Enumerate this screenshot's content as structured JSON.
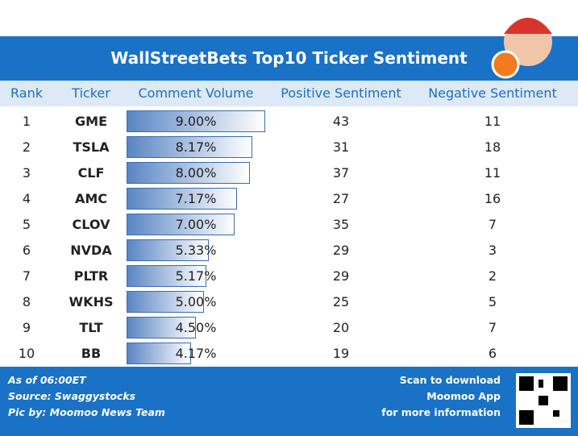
{
  "header": {
    "title": "WallStreetBets Top10 Ticker Sentiment"
  },
  "table": {
    "columns": [
      "Rank",
      "Ticker",
      "Comment Volume",
      "Positive Sentiment",
      "Negative Sentiment"
    ],
    "rows": [
      {
        "rank": 1,
        "ticker": "GME",
        "comment_volume": 9.0,
        "comment_volume_label": "9.00%",
        "positive": 43,
        "negative": 11
      },
      {
        "rank": 2,
        "ticker": "TSLA",
        "comment_volume": 8.17,
        "comment_volume_label": "8.17%",
        "positive": 31,
        "negative": 18
      },
      {
        "rank": 3,
        "ticker": "CLF",
        "comment_volume": 8.0,
        "comment_volume_label": "8.00%",
        "positive": 37,
        "negative": 11
      },
      {
        "rank": 4,
        "ticker": "AMC",
        "comment_volume": 7.17,
        "comment_volume_label": "7.17%",
        "positive": 27,
        "negative": 16
      },
      {
        "rank": 5,
        "ticker": "CLOV",
        "comment_volume": 7.0,
        "comment_volume_label": "7.00%",
        "positive": 35,
        "negative": 7
      },
      {
        "rank": 6,
        "ticker": "NVDA",
        "comment_volume": 5.33,
        "comment_volume_label": "5.33%",
        "positive": 29,
        "negative": 3
      },
      {
        "rank": 7,
        "ticker": "PLTR",
        "comment_volume": 5.17,
        "comment_volume_label": "5.17%",
        "positive": 29,
        "negative": 2
      },
      {
        "rank": 8,
        "ticker": "WKHS",
        "comment_volume": 5.0,
        "comment_volume_label": "5.00%",
        "positive": 25,
        "negative": 5
      },
      {
        "rank": 9,
        "ticker": "TLT",
        "comment_volume": 4.5,
        "comment_volume_label": "4.50%",
        "positive": 20,
        "negative": 7
      },
      {
        "rank": 10,
        "ticker": "BB",
        "comment_volume": 4.17,
        "comment_volume_label": "4.17%",
        "positive": 19,
        "negative": 6
      }
    ]
  },
  "footer": {
    "left": [
      "As of 06:00ET",
      "Source: Swaggystocks",
      "Pic by:  Moomoo News Team"
    ],
    "right": [
      "Scan to download",
      "Moomoo App",
      "for more information"
    ]
  }
}
